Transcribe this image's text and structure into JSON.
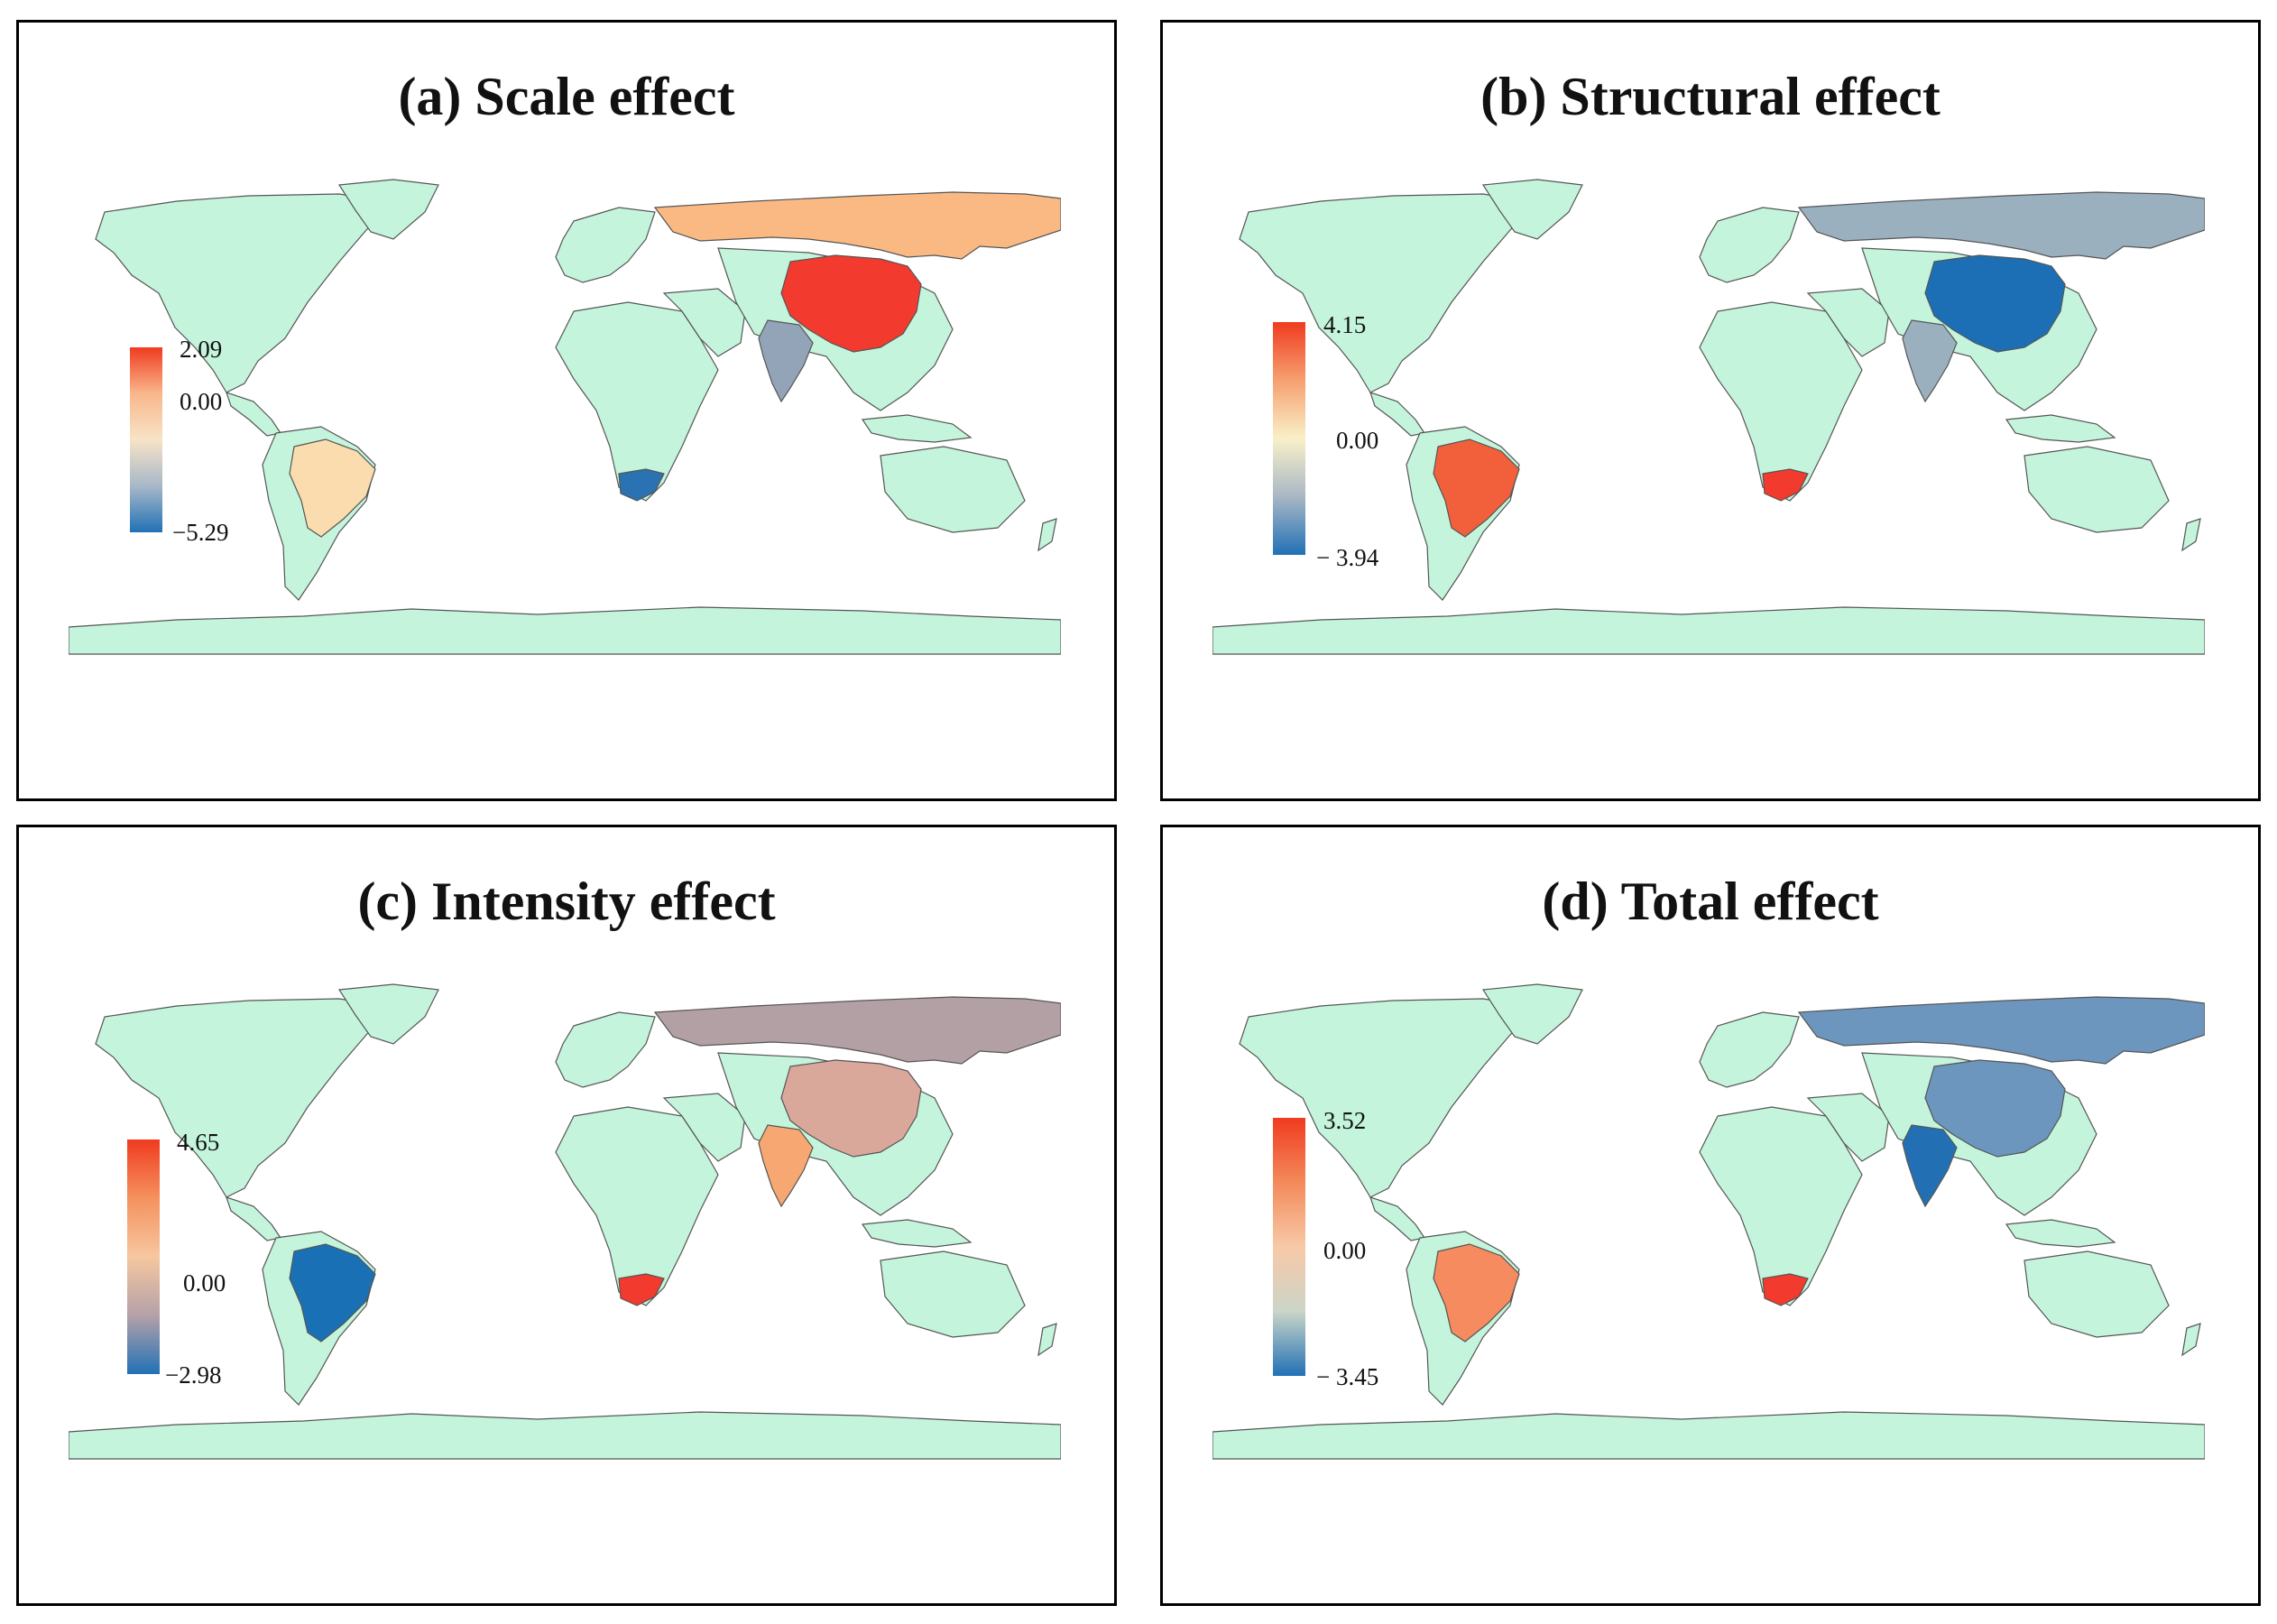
{
  "panels": [
    {
      "title": "(a) Scale effect",
      "legend": {
        "max": "2.09",
        "mid": "0.00",
        "min": "−5.29",
        "colors": [
          "#f03b20",
          "#f9b78c",
          "#f7e3c7",
          "#a7b8c8",
          "#2171b5"
        ]
      },
      "countries": {
        "russia": "#fab983",
        "china": "#f23a2e",
        "india": "#93a4b8",
        "brazil": "#fbdcae",
        "south_africa": "#2a72b2"
      }
    },
    {
      "title": "(b) Structural effect",
      "legend": {
        "max": "4.15",
        "mid": "0.00",
        "min": "− 3.94",
        "colors": [
          "#f03b20",
          "#f6a070",
          "#f9f0c8",
          "#a9b7c5",
          "#2171b5"
        ]
      },
      "countries": {
        "russia": "#9ab0bf",
        "china": "#1c6fb5",
        "india": "#9ab0bf",
        "brazil": "#f2603b",
        "south_africa": "#f23a2e"
      }
    },
    {
      "title": "(c) Intensity effect",
      "legend": {
        "max": "4.65",
        "mid": "0.00",
        "min": "−2.98",
        "colors": [
          "#f03b20",
          "#f5915e",
          "#f6c7a0",
          "#b5a1a8",
          "#2171b5"
        ]
      },
      "countries": {
        "russia": "#b3a0a4",
        "china": "#d9a89a",
        "india": "#f7a772",
        "brazil": "#1a70b5",
        "south_africa": "#f23a2e"
      }
    },
    {
      "title": "(d) Total effect",
      "legend": {
        "max": "3.52",
        "mid": "0.00",
        "min": "− 3.45",
        "colors": [
          "#f03b20",
          "#f38a5a",
          "#f8c9a8",
          "#cbd5c8",
          "#2171b5"
        ]
      },
      "countries": {
        "russia": "#6c96bd",
        "china": "#6c96bd",
        "india": "#2270b3",
        "brazil": "#f58b5e",
        "south_africa": "#f23a2e"
      }
    }
  ],
  "base_land_color": "#c4f5dc",
  "border_color": "#555555"
}
